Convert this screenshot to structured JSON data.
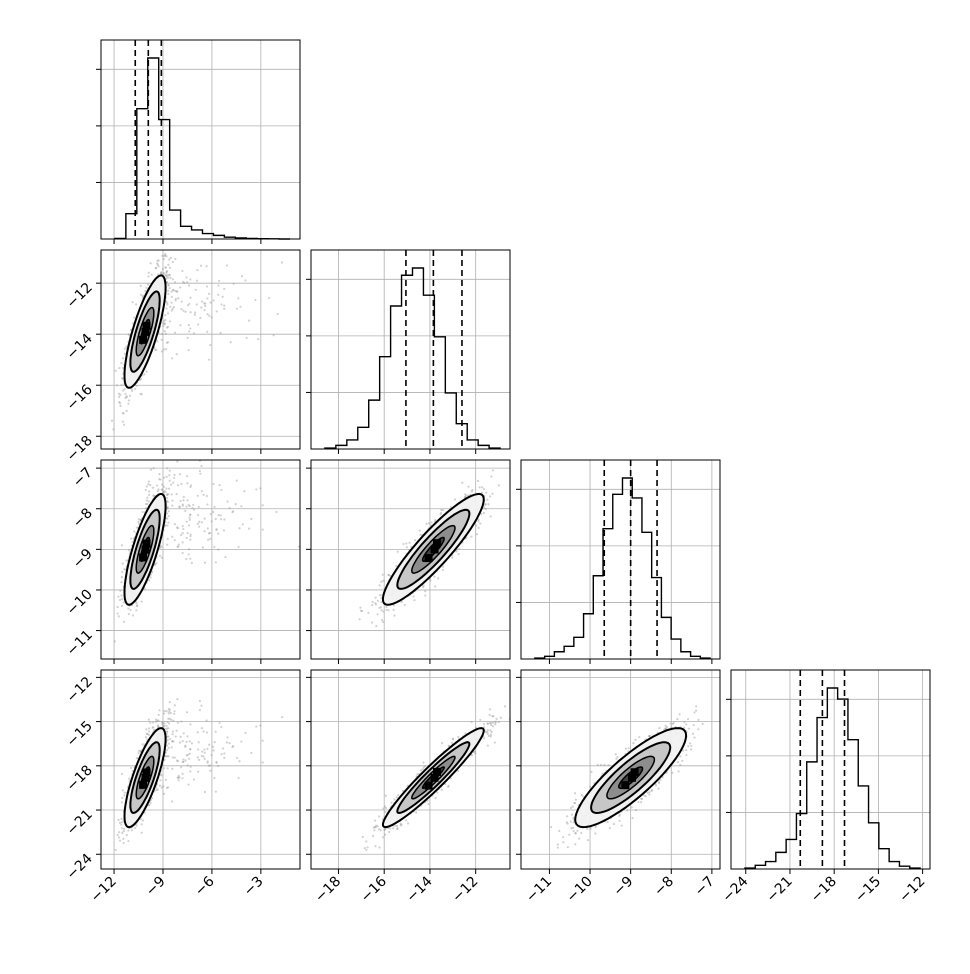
{
  "chart_data": [
    {
      "panel": "hist-1",
      "type": "histogram",
      "variable_index": 0,
      "x_range": [
        -12.8,
        -0.6
      ],
      "bin_counts": [
        0.3,
        14,
        72,
        100,
        66,
        16,
        7,
        5,
        3,
        2,
        1,
        0.6,
        0.3,
        0.15,
        0.1,
        0
      ],
      "quantile_lines": [
        -10.7,
        -9.9,
        -9.1
      ],
      "y_ticks_count": 3
    },
    {
      "panel": "hist-2",
      "type": "histogram",
      "variable_index": 1,
      "x_range": [
        -19.2,
        -10.5
      ],
      "bin_counts": [
        0.5,
        2,
        5,
        12,
        27,
        51,
        79,
        96,
        100,
        85,
        62,
        31,
        14,
        5,
        2,
        0.5
      ],
      "quantile_lines": [
        -15.05,
        -13.85,
        -12.6
      ],
      "y_ticks_count": 3
    },
    {
      "panel": "hist-3",
      "type": "histogram",
      "variable_index": 2,
      "x_range": [
        -11.7,
        -6.8
      ],
      "bin_counts": [
        0.5,
        1.5,
        4,
        7,
        12,
        25,
        46,
        72,
        91,
        100,
        89,
        70,
        45,
        23,
        11,
        4,
        1.5,
        0.5
      ],
      "quantile_lines": [
        -9.65,
        -9.0,
        -8.35
      ],
      "y_ticks_count": 3
    },
    {
      "panel": "hist-4",
      "type": "histogram",
      "variable_index": 3,
      "x_range": [
        -25,
        -11.5
      ],
      "bin_counts": [
        0.5,
        2,
        4,
        9,
        16,
        30,
        58,
        82,
        98,
        92,
        70,
        45,
        25,
        11,
        4,
        1.5,
        0.5
      ],
      "quantile_lines": [
        -20.3,
        -18.8,
        -17.3
      ],
      "y_ticks_count": 3
    },
    {
      "panel": "pair-1-0",
      "type": "scatter-contour",
      "x_index": 0,
      "y_index": 1,
      "x_range": [
        -12.8,
        -0.6
      ],
      "y_range": [
        -18.5,
        -10.7
      ],
      "center": [
        -10.1,
        -13.9
      ],
      "sigma": [
        0.6,
        1.05
      ],
      "corr": 0.78,
      "outlier_shift": [
        2.5,
        1.2
      ]
    },
    {
      "panel": "pair-2-0",
      "type": "scatter-contour",
      "x_index": 0,
      "y_index": 2,
      "x_range": [
        -12.8,
        -0.6
      ],
      "y_range": [
        -11.7,
        -6.8
      ],
      "center": [
        -10.1,
        -9.0
      ],
      "sigma": [
        0.6,
        0.65
      ],
      "corr": 0.78,
      "outlier_shift": [
        2.5,
        0.8
      ]
    },
    {
      "panel": "pair-2-1",
      "type": "scatter-contour",
      "x_index": 1,
      "y_index": 2,
      "x_range": [
        -19.2,
        -10.5
      ],
      "y_range": [
        -11.7,
        -6.8
      ],
      "center": [
        -13.85,
        -9.0
      ],
      "sigma": [
        1.05,
        0.65
      ],
      "corr": 0.9,
      "outlier_shift": [
        0,
        0
      ]
    },
    {
      "panel": "pair-3-0",
      "type": "scatter-contour",
      "x_index": 0,
      "y_index": 3,
      "x_range": [
        -12.8,
        -0.6
      ],
      "y_range": [
        -25,
        -11.5
      ],
      "center": [
        -10.1,
        -18.8
      ],
      "sigma": [
        0.6,
        1.6
      ],
      "corr": 0.78,
      "outlier_shift": [
        2.5,
        1.8
      ]
    },
    {
      "panel": "pair-3-1",
      "type": "scatter-contour",
      "x_index": 1,
      "y_index": 3,
      "x_range": [
        -19.2,
        -10.5
      ],
      "y_range": [
        -25,
        -11.5
      ],
      "center": [
        -13.85,
        -18.8
      ],
      "sigma": [
        1.05,
        1.6
      ],
      "corr": 0.95,
      "outlier_shift": [
        0,
        0
      ]
    },
    {
      "panel": "pair-3-2",
      "type": "scatter-contour",
      "x_index": 2,
      "y_index": 3,
      "x_range": [
        -11.7,
        -6.8
      ],
      "y_range": [
        -25,
        -11.5
      ],
      "center": [
        -9.0,
        -18.8
      ],
      "sigma": [
        0.65,
        1.6
      ],
      "corr": 0.85,
      "outlier_shift": [
        0,
        0
      ]
    }
  ],
  "axes": {
    "x_ticks": [
      [
        {
          "value": -12,
          "label": "−12"
        },
        {
          "value": -9,
          "label": "−9"
        },
        {
          "value": -6,
          "label": "−6"
        },
        {
          "value": -3,
          "label": "−3"
        }
      ],
      [
        {
          "value": -18,
          "label": "−18"
        },
        {
          "value": -16,
          "label": "−16"
        },
        {
          "value": -14,
          "label": "−14"
        },
        {
          "value": -12,
          "label": "−12"
        }
      ],
      [
        {
          "value": -11,
          "label": "−11"
        },
        {
          "value": -10,
          "label": "−10"
        },
        {
          "value": -9,
          "label": "−9"
        },
        {
          "value": -8,
          "label": "−8"
        },
        {
          "value": -7,
          "label": "−7"
        }
      ],
      [
        {
          "value": -24,
          "label": "−24"
        },
        {
          "value": -21,
          "label": "−21"
        },
        {
          "value": -18,
          "label": "−18"
        },
        {
          "value": -15,
          "label": "−15"
        },
        {
          "value": -12,
          "label": "−12"
        }
      ]
    ],
    "y_ticks": [
      null,
      [
        {
          "value": -12,
          "label": "−12"
        },
        {
          "value": -14,
          "label": "−14"
        },
        {
          "value": -16,
          "label": "−16"
        },
        {
          "value": -18,
          "label": "−18"
        }
      ],
      [
        {
          "value": -7,
          "label": "−7"
        },
        {
          "value": -8,
          "label": "−8"
        },
        {
          "value": -9,
          "label": "−9"
        },
        {
          "value": -10,
          "label": "−10"
        },
        {
          "value": -11,
          "label": "−11"
        }
      ],
      [
        {
          "value": -12,
          "label": "−12"
        },
        {
          "value": -15,
          "label": "−15"
        },
        {
          "value": -18,
          "label": "−18"
        },
        {
          "value": -21,
          "label": "−21"
        },
        {
          "value": -24,
          "label": "−24"
        }
      ]
    ]
  },
  "style": {
    "hist_color": "#000000",
    "point_color": "#9a9a9a",
    "grid_color": "#b0b0b0",
    "contour_color": "#000000",
    "fill_colors": [
      "#f2f2f2",
      "#c4c4c4",
      "#8a8a8a",
      "#3c3c3c",
      "#000000"
    ]
  }
}
